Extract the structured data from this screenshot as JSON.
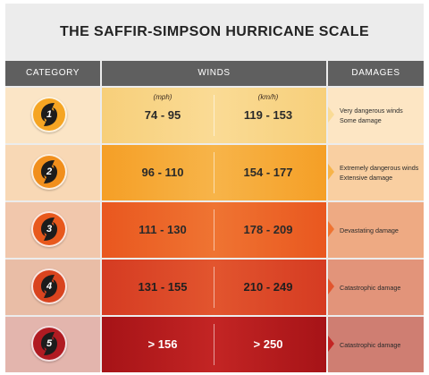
{
  "title": "THE SAFFIR-SIMPSON HURRICANE SCALE",
  "headers": {
    "category": "CATEGORY",
    "winds": "WINDS",
    "damages": "DAMAGES"
  },
  "units": {
    "mph": "(mph)",
    "kmh": "(km/h)"
  },
  "rows": [
    {
      "category": "1",
      "mph": "74 - 95",
      "kmh": "119 - 153",
      "damage_1": "Very dangerous winds",
      "damage_2": "Some damage",
      "colors": {
        "cat_bg": "#fbe5c6",
        "wind_from": "#f7cf7a",
        "wind_to": "#fadb95",
        "dam_bg": "#fde6c4",
        "badge": "#f5a523",
        "text": "#2a2a2a"
      }
    },
    {
      "category": "2",
      "mph": "96 - 110",
      "kmh": "154 - 177",
      "damage_1": "Extremely dangerous winds",
      "damage_2": "Extensive damage",
      "colors": {
        "cat_bg": "#f8d8b5",
        "wind_from": "#f59f26",
        "wind_to": "#f7b449",
        "dam_bg": "#f9cfa1",
        "badge": "#f18f1c",
        "text": "#2a2a2a"
      }
    },
    {
      "category": "3",
      "mph": "111 - 130",
      "kmh": "178 - 209",
      "damage_1": "Devastating damage",
      "damage_2": "",
      "colors": {
        "cat_bg": "#f1c7ac",
        "wind_from": "#e9571f",
        "wind_to": "#ef7432",
        "dam_bg": "#eeaa83",
        "badge": "#e8591d",
        "text": "#2a2a2a"
      }
    },
    {
      "category": "4",
      "mph": "131 - 155",
      "kmh": "210 - 249",
      "damage_1": "Catastrophic damage",
      "damage_2": "",
      "colors": {
        "cat_bg": "#e9bda6",
        "wind_from": "#d53b22",
        "wind_to": "#e2552e",
        "dam_bg": "#e2947a",
        "badge": "#d9441f",
        "text": "#1f1f1f"
      }
    },
    {
      "category": "5",
      "mph": "> 156",
      "kmh": "> 250",
      "damage_1": "Catastrophic damage",
      "damage_2": "",
      "colors": {
        "cat_bg": "#e3b5ad",
        "wind_from": "#a61317",
        "wind_to": "#c32524",
        "dam_bg": "#cf7e72",
        "badge": "#b01b22",
        "text": "#ffffff"
      }
    }
  ],
  "icon": "hurricane-symbol-icon"
}
